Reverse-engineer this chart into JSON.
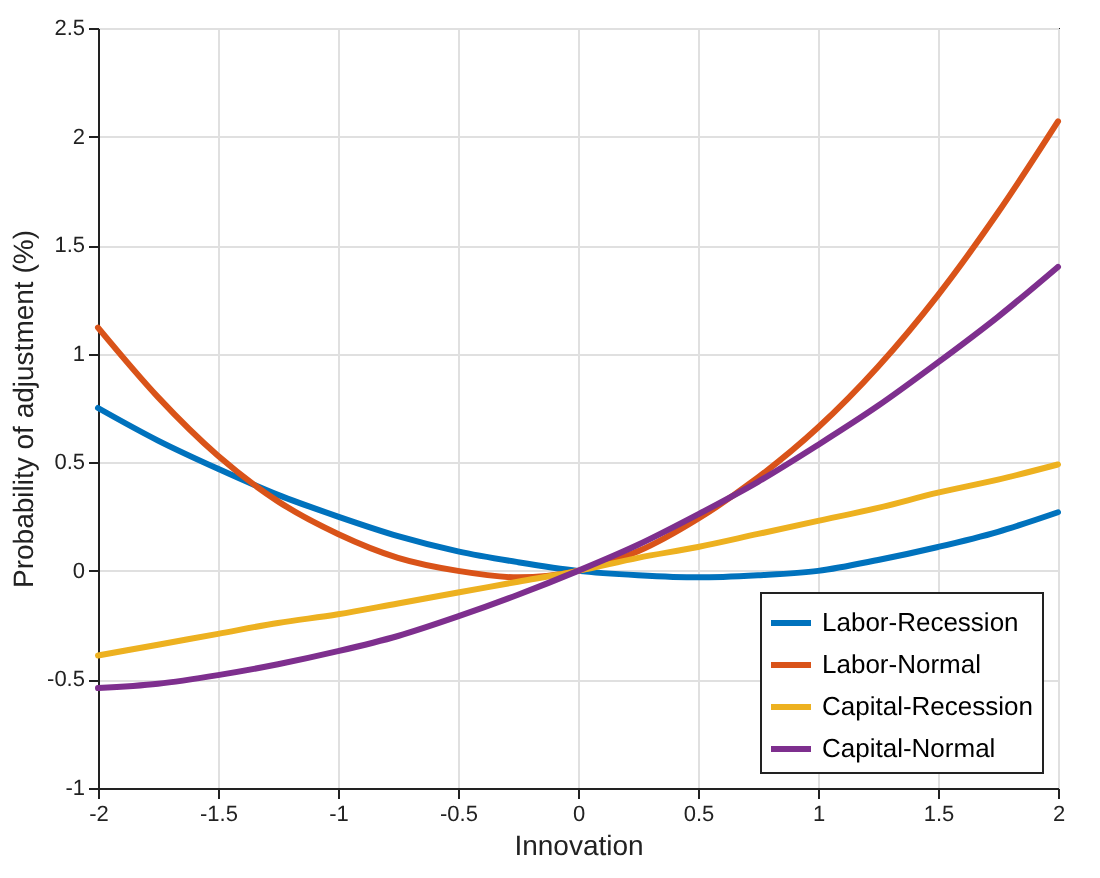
{
  "chart_data": {
    "type": "line",
    "xlabel": "Innovation",
    "ylabel": "Probability of adjustment (%)",
    "x": [
      -2,
      -1.75,
      -1.5,
      -1.25,
      -1,
      -0.75,
      -0.5,
      -0.25,
      0,
      0.25,
      0.5,
      0.75,
      1,
      1.25,
      1.5,
      1.75,
      2
    ],
    "series": [
      {
        "name": "Labor-Recession",
        "color": "#0072bd",
        "values": [
          0.75,
          0.6,
          0.47,
          0.35,
          0.25,
          0.16,
          0.09,
          0.04,
          0,
          -0.02,
          -0.03,
          -0.02,
          0,
          0.05,
          0.11,
          0.18,
          0.27
        ]
      },
      {
        "name": "Labor-Normal",
        "color": "#d95319",
        "values": [
          1.12,
          0.8,
          0.53,
          0.32,
          0.17,
          0.06,
          0,
          -0.03,
          0,
          0.09,
          0.24,
          0.43,
          0.66,
          0.94,
          1.27,
          1.65,
          2.07
        ]
      },
      {
        "name": "Capital-Recession",
        "color": "#edb120",
        "values": [
          -0.39,
          -0.34,
          -0.29,
          -0.24,
          -0.2,
          -0.15,
          -0.1,
          -0.05,
          0,
          0.06,
          0.11,
          0.17,
          0.23,
          0.29,
          0.36,
          0.42,
          0.49
        ]
      },
      {
        "name": "Capital-Normal",
        "color": "#7e2f8e",
        "values": [
          -0.54,
          -0.52,
          -0.48,
          -0.43,
          -0.37,
          -0.3,
          -0.21,
          -0.11,
          0,
          0.12,
          0.26,
          0.41,
          0.58,
          0.76,
          0.96,
          1.17,
          1.4
        ]
      }
    ],
    "xlim": [
      -2,
      2
    ],
    "xticks": [
      -2,
      -1.5,
      -1,
      -0.5,
      0,
      0.5,
      1,
      1.5,
      2
    ],
    "ylim": [
      -1,
      2.5
    ],
    "yticks": [
      -1,
      -0.5,
      0,
      0.5,
      1,
      1.5,
      2,
      2.5
    ],
    "grid": true,
    "legend": "bottom right",
    "marker": "none",
    "line_style": "solid"
  }
}
